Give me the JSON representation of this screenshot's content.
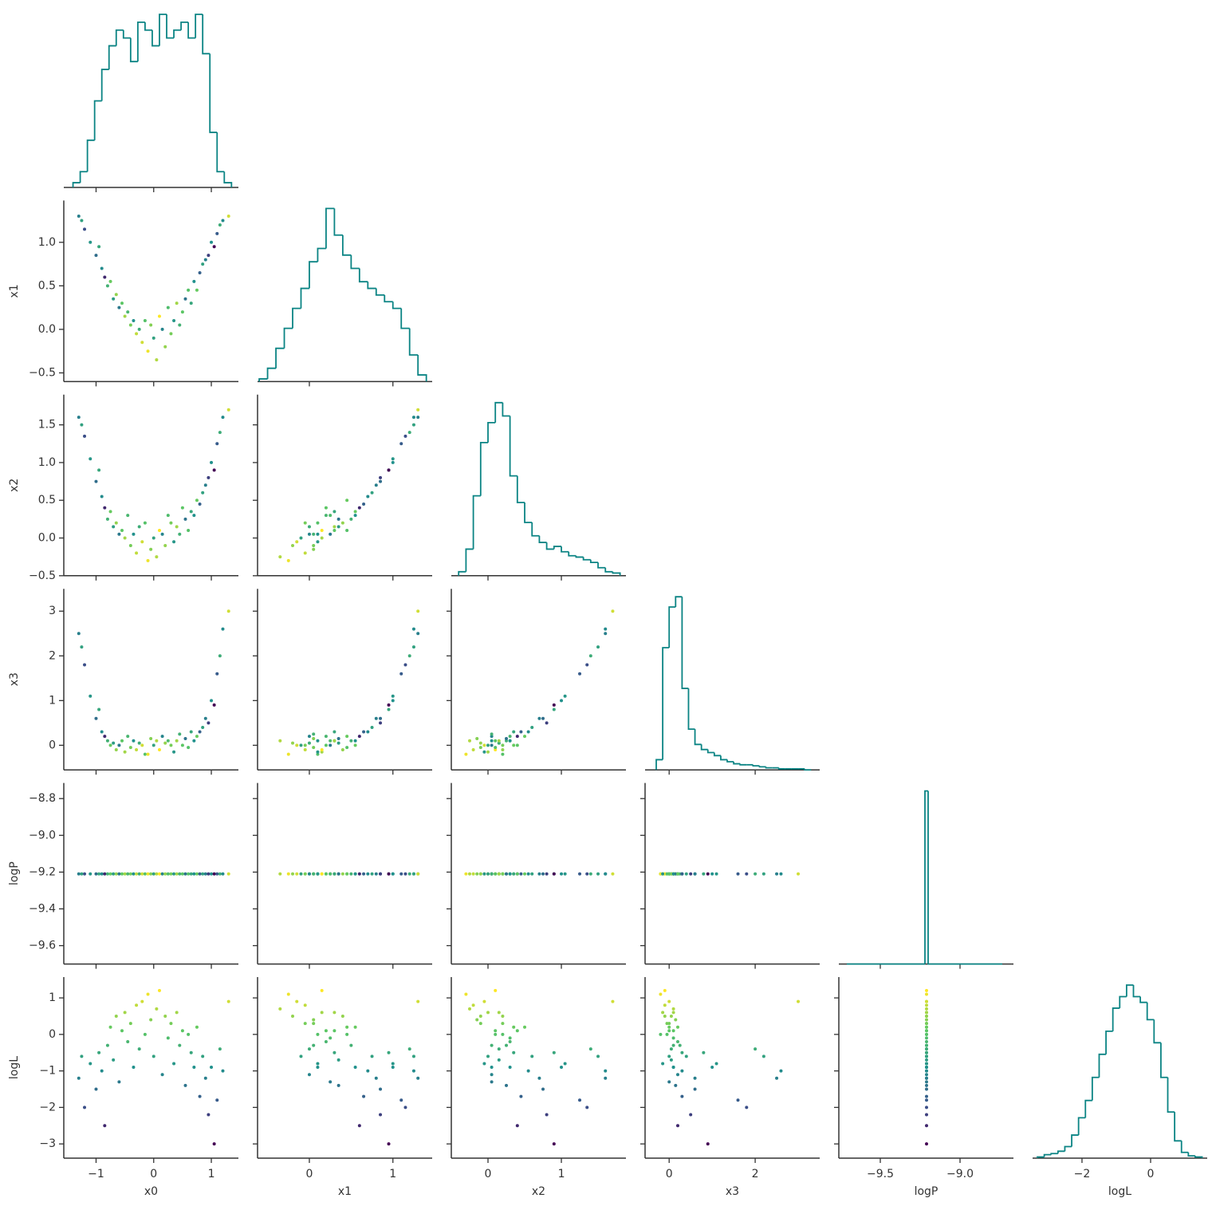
{
  "chart_data": {
    "type": "pairplot",
    "hist_color": "#0b8484",
    "colormap": [
      "#440154",
      "#3b528b",
      "#21918c",
      "#5ec962",
      "#fde725"
    ],
    "color_by": "logL",
    "variables": [
      {
        "name": "x0",
        "xlim": [
          -1.56,
          1.47
        ],
        "xticks": [
          {
            "value": -1,
            "label": "−1"
          },
          0,
          1
        ]
      },
      {
        "name": "x1",
        "xlim": [
          -0.62,
          1.47
        ],
        "xticks": [
          0,
          1
        ],
        "ylim": [
          -0.6,
          1.48
        ],
        "yticks": [
          {
            "value": -0.5,
            "label": "−0.5"
          },
          {
            "value": 0,
            "label": "0.0"
          },
          0.5,
          {
            "value": 1,
            "label": "1.0"
          }
        ]
      },
      {
        "name": "x2",
        "xlim": [
          -0.5,
          1.88
        ],
        "xticks": [
          0,
          1
        ],
        "ylim": [
          -0.5,
          1.9
        ],
        "yticks": [
          {
            "value": -0.5,
            "label": "−0.5"
          },
          {
            "value": 0,
            "label": "0.0"
          },
          0.5,
          {
            "value": 1,
            "label": "1.0"
          },
          1.5
        ]
      },
      {
        "name": "x3",
        "xlim": [
          -0.56,
          3.5
        ],
        "xticks": [
          0,
          2
        ],
        "ylim": [
          -0.55,
          3.5
        ],
        "yticks": [
          0,
          1,
          2,
          3
        ]
      },
      {
        "name": "logP",
        "xlim": [
          -9.76,
          -8.665
        ],
        "xticks": [
          {
            "value": -9.5,
            "label": "−9.5"
          },
          {
            "value": -9.0,
            "label": "−9.0"
          }
        ],
        "ylim": [
          -9.7,
          -8.715
        ],
        "yticks": [
          {
            "value": -9.6,
            "label": "−9.6"
          },
          {
            "value": -9.4,
            "label": "−9.4"
          },
          {
            "value": -9.2,
            "label": "−9.2"
          },
          {
            "value": -9.0,
            "label": "−9.0"
          },
          {
            "value": -8.8,
            "label": "−8.8"
          }
        ]
      },
      {
        "name": "logL",
        "xlim": [
          -3.44,
          1.65
        ],
        "xticks": [
          {
            "value": -2,
            "label": "−2"
          },
          0
        ],
        "ylim": [
          -3.39,
          1.57
        ],
        "yticks": [
          {
            "value": -3,
            "label": "−3"
          },
          {
            "value": -2,
            "label": "−2"
          },
          {
            "value": -1,
            "label": "−1"
          },
          0,
          1
        ]
      }
    ],
    "samples": [
      [
        -1.3,
        -1.2,
        -1.1,
        -1.0,
        -0.95,
        -0.9,
        -0.85,
        -0.8,
        -0.75,
        -0.7,
        -0.65,
        -0.6,
        -0.55,
        -0.5,
        -0.45,
        -0.4,
        -0.35,
        -0.3,
        -0.25,
        -0.2,
        -0.15,
        -0.1,
        -0.05,
        0.0,
        0.05,
        0.1,
        0.15,
        0.2,
        0.25,
        0.3,
        0.35,
        0.4,
        0.45,
        0.5,
        0.55,
        0.6,
        0.65,
        0.7,
        0.75,
        0.8,
        0.85,
        0.9,
        0.95,
        1.0,
        1.05,
        1.1,
        1.15,
        1.2,
        1.3,
        -1.25
      ],
      [
        1.3,
        1.15,
        1.0,
        0.85,
        0.95,
        0.7,
        0.6,
        0.5,
        0.55,
        0.35,
        0.4,
        0.25,
        0.3,
        0.15,
        0.2,
        0.05,
        0.1,
        -0.05,
        0.0,
        -0.15,
        0.1,
        -0.25,
        0.05,
        -0.1,
        -0.35,
        0.15,
        0.0,
        -0.2,
        0.25,
        -0.05,
        0.1,
        0.3,
        0.05,
        0.2,
        0.35,
        0.45,
        0.3,
        0.55,
        0.45,
        0.65,
        0.75,
        0.8,
        0.85,
        1.0,
        0.95,
        1.1,
        1.2,
        1.25,
        1.3,
        1.25
      ],
      [
        1.6,
        1.35,
        1.05,
        0.75,
        0.9,
        0.55,
        0.4,
        0.25,
        0.35,
        0.15,
        0.2,
        0.05,
        0.1,
        0.0,
        0.3,
        -0.1,
        0.05,
        -0.2,
        0.15,
        -0.05,
        0.2,
        -0.3,
        -0.15,
        0.0,
        -0.25,
        0.1,
        0.05,
        -0.1,
        0.3,
        0.2,
        -0.05,
        0.15,
        0.05,
        0.4,
        0.25,
        0.1,
        0.35,
        0.3,
        0.5,
        0.45,
        0.6,
        0.7,
        0.8,
        1.0,
        0.9,
        1.25,
        1.4,
        1.6,
        1.7,
        1.5
      ],
      [
        2.5,
        1.8,
        1.1,
        0.6,
        0.8,
        0.3,
        0.2,
        0.1,
        0.0,
        0.05,
        -0.1,
        0.0,
        0.1,
        -0.15,
        0.2,
        -0.05,
        0.1,
        -0.1,
        0.05,
        0.0,
        -0.2,
        -0.2,
        0.15,
        0.0,
        0.1,
        -0.1,
        0.2,
        0.05,
        0.1,
        0.0,
        -0.15,
        0.1,
        0.25,
        0.0,
        0.15,
        -0.05,
        0.3,
        0.1,
        0.2,
        0.3,
        0.4,
        0.6,
        0.5,
        1.0,
        0.9,
        1.6,
        2.0,
        2.6,
        3.0,
        2.2
      ],
      [
        -9.21,
        -9.21,
        -9.21,
        -9.21,
        -9.21,
        -9.21,
        -9.21,
        -9.21,
        -9.21,
        -9.21,
        -9.21,
        -9.21,
        -9.21,
        -9.21,
        -9.21,
        -9.21,
        -9.21,
        -9.21,
        -9.21,
        -9.21,
        -9.21,
        -9.21,
        -9.21,
        -9.21,
        -9.21,
        -9.21,
        -9.21,
        -9.21,
        -9.21,
        -9.21,
        -9.21,
        -9.21,
        -9.21,
        -9.21,
        -9.21,
        -9.21,
        -9.21,
        -9.21,
        -9.21,
        -9.21,
        -9.21,
        -9.21,
        -9.21,
        -9.21,
        -9.21,
        -9.21,
        -9.21,
        -9.21,
        -9.21,
        -9.21
      ],
      [
        -1.2,
        -2.0,
        -0.8,
        -1.5,
        -0.5,
        -1.0,
        -2.5,
        -0.3,
        0.2,
        -0.7,
        0.5,
        -1.3,
        0.1,
        0.6,
        -0.2,
        0.3,
        -0.9,
        0.8,
        -0.4,
        0.9,
        0.0,
        1.1,
        0.4,
        -0.6,
        0.7,
        1.2,
        -1.1,
        0.5,
        -0.1,
        0.3,
        -0.8,
        0.6,
        -0.3,
        0.1,
        -1.4,
        0.0,
        -0.5,
        -0.9,
        0.2,
        -1.7,
        -0.6,
        -1.2,
        -2.2,
        -0.9,
        -3.0,
        -1.8,
        -0.4,
        -1.0,
        0.9,
        -0.6
      ]
    ],
    "histograms": [
      {
        "bins": [
          -1.4,
          -1.275,
          -1.15,
          -1.025,
          -0.9,
          -0.775,
          -0.65,
          -0.525,
          -0.4,
          -0.275,
          -0.15,
          -0.025,
          0.1,
          0.225,
          0.35,
          0.475,
          0.6,
          0.725,
          0.85,
          0.975,
          1.1,
          1.225,
          1.35
        ],
        "counts": [
          3,
          10,
          30,
          55,
          75,
          90,
          100,
          95,
          80,
          105,
          100,
          90,
          110,
          95,
          100,
          105,
          95,
          110,
          85,
          35,
          10,
          3
        ]
      },
      {
        "bins": [
          -0.6,
          -0.5,
          -0.4,
          -0.3,
          -0.2,
          -0.1,
          0.0,
          0.1,
          0.2,
          0.3,
          0.4,
          0.5,
          0.6,
          0.7,
          0.8,
          0.9,
          1.0,
          1.1,
          1.2,
          1.3,
          1.4
        ],
        "counts": [
          2,
          10,
          25,
          40,
          55,
          70,
          90,
          100,
          130,
          110,
          95,
          85,
          75,
          70,
          65,
          60,
          55,
          40,
          20,
          5
        ]
      },
      {
        "bins": [
          -0.4,
          -0.3,
          -0.2,
          -0.1,
          0.0,
          0.1,
          0.2,
          0.3,
          0.4,
          0.5,
          0.6,
          0.7,
          0.8,
          0.9,
          1.0,
          1.1,
          1.2,
          1.3,
          1.4,
          1.5,
          1.6,
          1.7,
          1.8
        ],
        "counts": [
          3,
          20,
          60,
          100,
          115,
          130,
          120,
          75,
          55,
          40,
          30,
          25,
          20,
          22,
          18,
          15,
          14,
          12,
          10,
          6,
          3,
          2
        ]
      },
      {
        "bins": [
          -0.3,
          -0.15,
          0.0,
          0.15,
          0.3,
          0.45,
          0.6,
          0.75,
          0.9,
          1.05,
          1.2,
          1.35,
          1.5,
          1.65,
          1.8,
          1.95,
          2.1,
          2.25,
          2.4,
          2.55,
          2.7,
          2.85,
          3.0,
          3.15,
          3.3
        ],
        "counts": [
          10,
          120,
          160,
          170,
          80,
          40,
          25,
          20,
          17,
          14,
          10,
          8,
          6,
          5,
          5,
          4,
          3,
          2,
          2,
          1,
          1,
          1,
          1,
          0
        ]
      },
      {
        "bins": [
          -9.71,
          -9.22,
          -9.2,
          -8.735
        ],
        "counts": [
          0,
          4000,
          0
        ]
      },
      {
        "bins": [
          -3.3,
          -3.1,
          -2.9,
          -2.7,
          -2.5,
          -2.3,
          -2.1,
          -1.9,
          -1.7,
          -1.5,
          -1.3,
          -1.1,
          -0.9,
          -0.7,
          -0.5,
          -0.3,
          -0.1,
          0.1,
          0.3,
          0.5,
          0.7,
          0.9,
          1.1,
          1.3,
          1.5
        ],
        "counts": [
          1,
          3,
          4,
          6,
          10,
          20,
          35,
          50,
          70,
          90,
          110,
          130,
          140,
          150,
          140,
          135,
          120,
          100,
          70,
          40,
          15,
          5,
          2,
          1
        ]
      }
    ]
  }
}
